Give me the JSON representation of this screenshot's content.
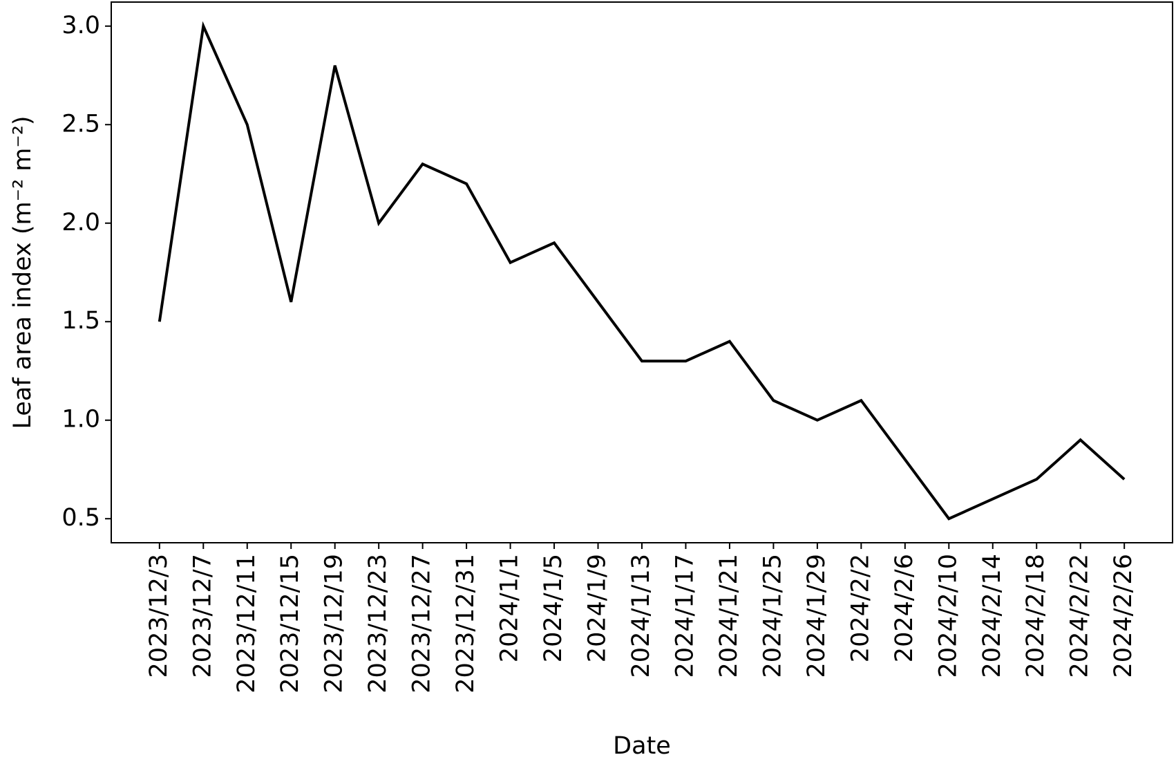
{
  "chart_data": {
    "type": "line",
    "x_label": "Date",
    "y_label": "Leaf area index (m⁻² m⁻²)",
    "categories": [
      "2023/12/3",
      "2023/12/7",
      "2023/12/11",
      "2023/12/15",
      "2023/12/19",
      "2023/12/23",
      "2023/12/27",
      "2023/12/31",
      "2024/1/1",
      "2024/1/5",
      "2024/1/9",
      "2024/1/13",
      "2024/1/17",
      "2024/1/21",
      "2024/1/25",
      "2024/1/29",
      "2024/2/2",
      "2024/2/6",
      "2024/2/10",
      "2024/2/14",
      "2024/2/18",
      "2024/2/22",
      "2024/2/26"
    ],
    "values": [
      1.5,
      3.0,
      2.5,
      1.6,
      2.8,
      2.0,
      2.3,
      2.2,
      1.8,
      1.9,
      1.6,
      1.3,
      1.3,
      1.4,
      1.1,
      1.0,
      1.1,
      0.8,
      0.5,
      0.6,
      0.7,
      0.9,
      0.7
    ],
    "color": "#000000",
    "ylim": [
      0.378,
      3.122
    ],
    "yticks": [
      {
        "value": 0.5,
        "label": "0.5"
      },
      {
        "value": 1.0,
        "label": "1.0"
      },
      {
        "value": 1.5,
        "label": "1.5"
      },
      {
        "value": 2.0,
        "label": "2.0"
      },
      {
        "value": 2.5,
        "label": "2.5"
      },
      {
        "value": 3.0,
        "label": "3.0"
      }
    ],
    "grid": false
  }
}
